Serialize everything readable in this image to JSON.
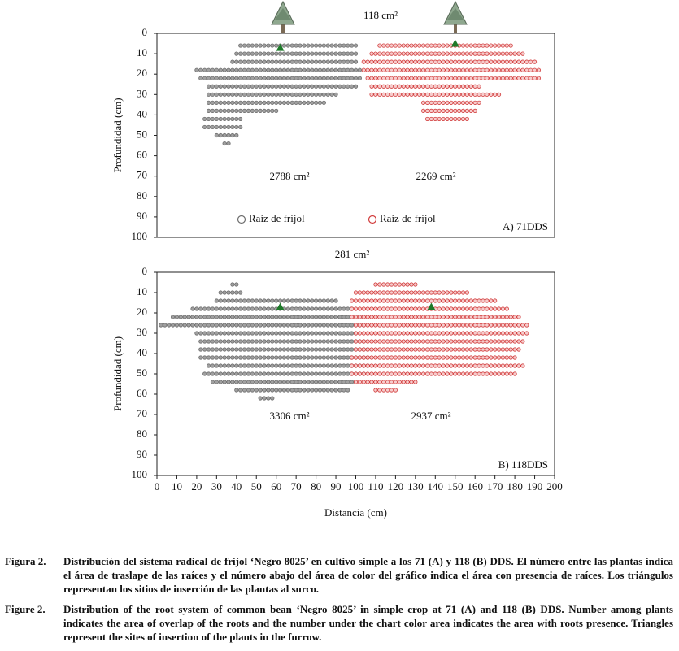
{
  "xlim": [
    0,
    200
  ],
  "xticks": [
    0,
    10,
    20,
    30,
    40,
    50,
    60,
    70,
    80,
    90,
    100,
    110,
    120,
    130,
    140,
    150,
    160,
    170,
    180,
    190,
    200
  ],
  "xlabel": "Distancia (cm)",
  "dot_step": 2,
  "panels": [
    {
      "label": "A) 71DDS",
      "overlap": "118 cm²",
      "ylabel": "Profundidad (cm)",
      "ylim": [
        0,
        100
      ],
      "yticks": [
        0,
        10,
        20,
        30,
        40,
        50,
        60,
        70,
        80,
        90,
        100
      ],
      "plants": [
        [
          62,
          7
        ],
        [
          150,
          5
        ]
      ],
      "series": [
        {
          "name": "Raíz de frijol",
          "color": "#6e6e6e",
          "fill": "#a0a0a0",
          "area": "2788 cm²",
          "rows": [
            [
              6,
              42,
              100
            ],
            [
              10,
              40,
              100
            ],
            [
              14,
              38,
              100
            ],
            [
              18,
              20,
              102
            ],
            [
              22,
              22,
              102
            ],
            [
              26,
              26,
              100
            ],
            [
              30,
              26,
              90
            ],
            [
              34,
              26,
              84
            ],
            [
              38,
              26,
              60
            ],
            [
              42,
              24,
              42
            ],
            [
              46,
              24,
              42
            ],
            [
              50,
              30,
              40
            ],
            [
              54,
              34,
              36
            ]
          ]
        },
        {
          "name": "Raíz de frijol",
          "color": "#d23c3c",
          "fill": "#f6cccc",
          "area": "2269 cm²",
          "rows": [
            [
              6,
              112,
              178
            ],
            [
              10,
              108,
              184
            ],
            [
              14,
              104,
              190
            ],
            [
              18,
              104,
              192
            ],
            [
              22,
              106,
              192
            ],
            [
              26,
              108,
              162
            ],
            [
              30,
              108,
              172
            ],
            [
              34,
              134,
              162
            ],
            [
              38,
              134,
              160
            ],
            [
              42,
              136,
              156
            ]
          ]
        }
      ]
    },
    {
      "label": "B) 118DDS",
      "overlap": "281 cm²",
      "ylabel": "Profundidad (cm)",
      "ylim": [
        0,
        100
      ],
      "yticks": [
        0,
        10,
        20,
        30,
        40,
        50,
        60,
        70,
        80,
        90,
        100
      ],
      "plants": [
        [
          62,
          17
        ],
        [
          138,
          17
        ]
      ],
      "series": [
        {
          "color": "#6e6e6e",
          "fill": "#a0a0a0",
          "area": "3306 cm²",
          "rows": [
            [
              6,
              38,
              40
            ],
            [
              10,
              32,
              42
            ],
            [
              14,
              30,
              90
            ],
            [
              18,
              18,
              98
            ],
            [
              22,
              8,
              104
            ],
            [
              26,
              2,
              104
            ],
            [
              30,
              20,
              100
            ],
            [
              34,
              22,
              104
            ],
            [
              38,
              22,
              106
            ],
            [
              42,
              22,
              106
            ],
            [
              46,
              26,
              106
            ],
            [
              50,
              24,
              104
            ],
            [
              54,
              28,
              100
            ],
            [
              58,
              40,
              96
            ],
            [
              62,
              52,
              58
            ]
          ]
        },
        {
          "color": "#d23c3c",
          "fill": "#f6cccc",
          "area": "2937 cm²",
          "rows": [
            [
              6,
              110,
              130
            ],
            [
              10,
              100,
              156
            ],
            [
              14,
              98,
              170
            ],
            [
              18,
              98,
              176
            ],
            [
              22,
              98,
              182
            ],
            [
              26,
              100,
              186
            ],
            [
              30,
              100,
              186
            ],
            [
              34,
              100,
              184
            ],
            [
              38,
              100,
              182
            ],
            [
              42,
              98,
              180
            ],
            [
              46,
              98,
              184
            ],
            [
              50,
              98,
              180
            ],
            [
              54,
              100,
              130
            ],
            [
              58,
              110,
              120
            ]
          ]
        }
      ]
    }
  ],
  "caption": [
    {
      "label": "Figura 2.",
      "text": "Distribución del sistema radical de frijol ‘Negro 8025’ en cultivo simple a los 71 (A) y 118 (B) DDS. El número entre las plantas indica el área de traslape de las raíces y el número abajo del área de color del gráfico indica el área con presencia de raíces. Los triángulos representan los sitios de inserción de las plantas al surco."
    },
    {
      "label": "Figure 2.",
      "text": "Distribution of the root system of common bean ‘Negro 8025’ in simple crop at 71 (A) and 118 (B) DDS. Number among plants indicates the area of overlap of the roots and the number under the chart color area indicates the area with roots presence. Triangles represent the sites of insertion of the plants in the furrow."
    }
  ]
}
